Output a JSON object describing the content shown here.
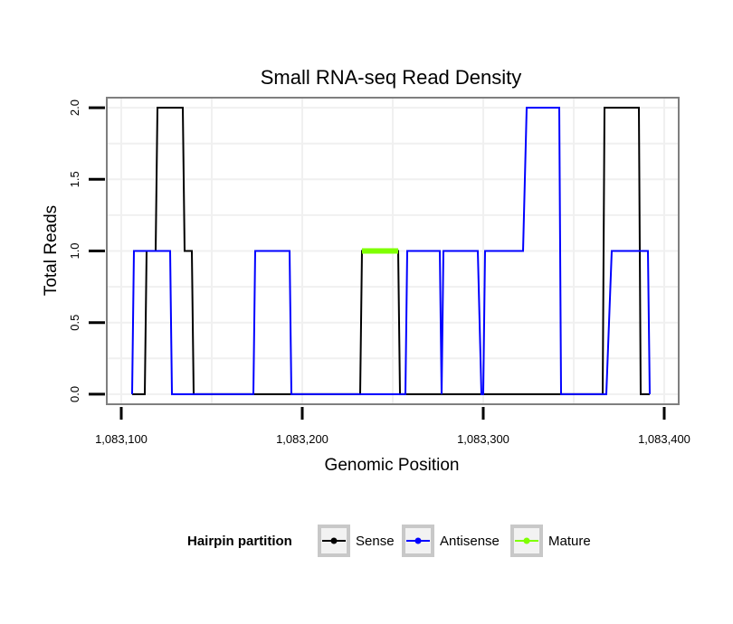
{
  "chart_data": {
    "type": "line",
    "title": "Small RNA-seq Read Density",
    "xlabel": "Genomic Position",
    "ylabel": "Total Reads",
    "xlim": [
      1083092,
      1083408
    ],
    "ylim": [
      -0.07,
      2.07
    ],
    "x_ticks": [
      1083100,
      1083200,
      1083300,
      1083400
    ],
    "x_tick_labels": [
      "1,083,100",
      "1,083,200",
      "1,083,300",
      "1,083,400"
    ],
    "y_ticks": [
      0,
      0.5,
      1,
      1.5,
      2
    ],
    "y_tick_labels": [
      "0.0",
      "0.5",
      "1.0",
      "1.5",
      "2.0"
    ],
    "grid": true,
    "legend_title": "Hairpin partition",
    "legend_position": "bottom",
    "series": [
      {
        "name": "Sense",
        "color": "#000000",
        "x": [
          1083106,
          1083113,
          1083114,
          1083119,
          1083120,
          1083134,
          1083135,
          1083139,
          1083140,
          1083232,
          1083233,
          1083253,
          1083254,
          1083366,
          1083367,
          1083386,
          1083387,
          1083392
        ],
        "y": [
          0,
          0,
          1,
          1,
          2,
          2,
          1,
          1,
          0,
          0,
          1,
          1,
          0,
          0,
          2,
          2,
          0,
          0
        ]
      },
      {
        "name": "Antisense",
        "color": "#0000ff",
        "x": [
          1083106,
          1083107,
          1083127,
          1083128,
          1083173,
          1083174,
          1083193,
          1083194,
          1083257,
          1083258,
          1083276,
          1083277,
          1083278,
          1083297,
          1083299,
          1083300,
          1083301,
          1083302,
          1083322,
          1083324,
          1083342,
          1083343,
          1083368,
          1083371,
          1083391,
          1083392
        ],
        "y": [
          0,
          1,
          1,
          0,
          0,
          1,
          1,
          0,
          0,
          1,
          1,
          0,
          1,
          1,
          0,
          0,
          1,
          1,
          1,
          2,
          2,
          0,
          0,
          1,
          1,
          0
        ]
      },
      {
        "name": "Mature",
        "color": "#7fff00",
        "x": [
          1083233,
          1083253
        ],
        "y": [
          1,
          1
        ]
      }
    ]
  }
}
